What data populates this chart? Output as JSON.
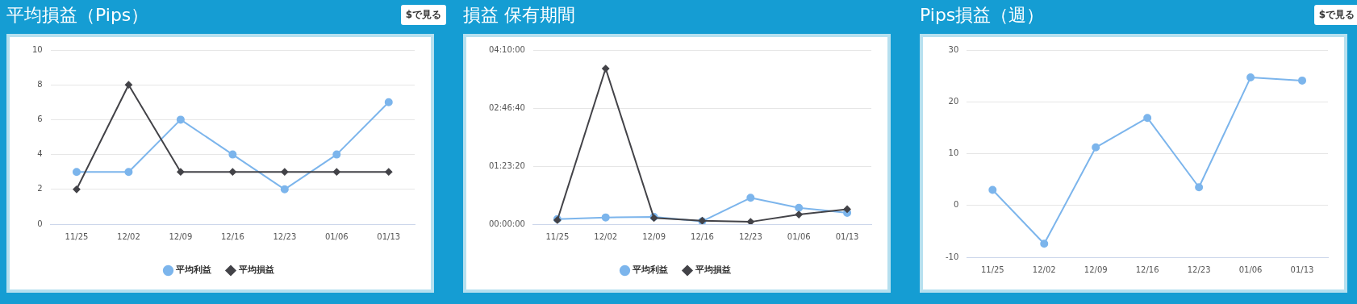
{
  "chart_data": [
    {
      "type": "line",
      "title": "平均損益（Pips）",
      "annotations": [
        "$で見る"
      ],
      "categories": [
        "11/25",
        "12/02",
        "12/09",
        "12/16",
        "12/23",
        "01/06",
        "01/13"
      ],
      "series": [
        {
          "name": "平均利益",
          "color": "#7cb5ec",
          "marker": "circle",
          "values": [
            3,
            3,
            6,
            4,
            2,
            4,
            7
          ]
        },
        {
          "name": "平均損益",
          "color": "#434348",
          "marker": "diamond",
          "values": [
            2,
            8,
            3,
            3,
            3,
            3,
            3
          ]
        }
      ],
      "ylim": [
        0,
        10
      ],
      "yticks": [
        0,
        2,
        4,
        6,
        8,
        10
      ],
      "grid": "y",
      "legend": "bottom"
    },
    {
      "type": "line",
      "title": "損益 保有期間",
      "categories": [
        "11/25",
        "12/02",
        "12/09",
        "12/16",
        "12/23",
        "01/06",
        "01/13"
      ],
      "series": [
        {
          "name": "平均利益",
          "color": "#7cb5ec",
          "marker": "circle",
          "values": [
            430,
            580,
            630,
            250,
            2270,
            1410,
            980
          ]
        },
        {
          "name": "平均損益",
          "color": "#434348",
          "marker": "diamond",
          "values": [
            350,
            13400,
            530,
            300,
            200,
            830,
            1290
          ]
        }
      ],
      "ylim": [
        0,
        15000
      ],
      "yticks": [
        {
          "value": 0,
          "label": "00:00:00"
        },
        {
          "value": 5000,
          "label": "01:23:20"
        },
        {
          "value": 10000,
          "label": "02:46:40"
        },
        {
          "value": 15000,
          "label": "04:10:00"
        }
      ],
      "grid": "y",
      "legend": "bottom"
    },
    {
      "type": "line",
      "title": "Pips損益（週）",
      "annotations": [
        "$で見る"
      ],
      "categories": [
        "11/25",
        "12/02",
        "12/09",
        "12/16",
        "12/23",
        "01/06",
        "01/13"
      ],
      "series": [
        {
          "color": "#7cb5ec",
          "marker": "circle",
          "values": [
            3.0,
            -7.4,
            11.2,
            16.9,
            3.5,
            24.7,
            24.1
          ]
        }
      ],
      "ylim": [
        -10,
        30
      ],
      "yticks": [
        -10,
        0,
        10,
        20,
        30
      ],
      "grid": "y",
      "legend": false
    }
  ]
}
